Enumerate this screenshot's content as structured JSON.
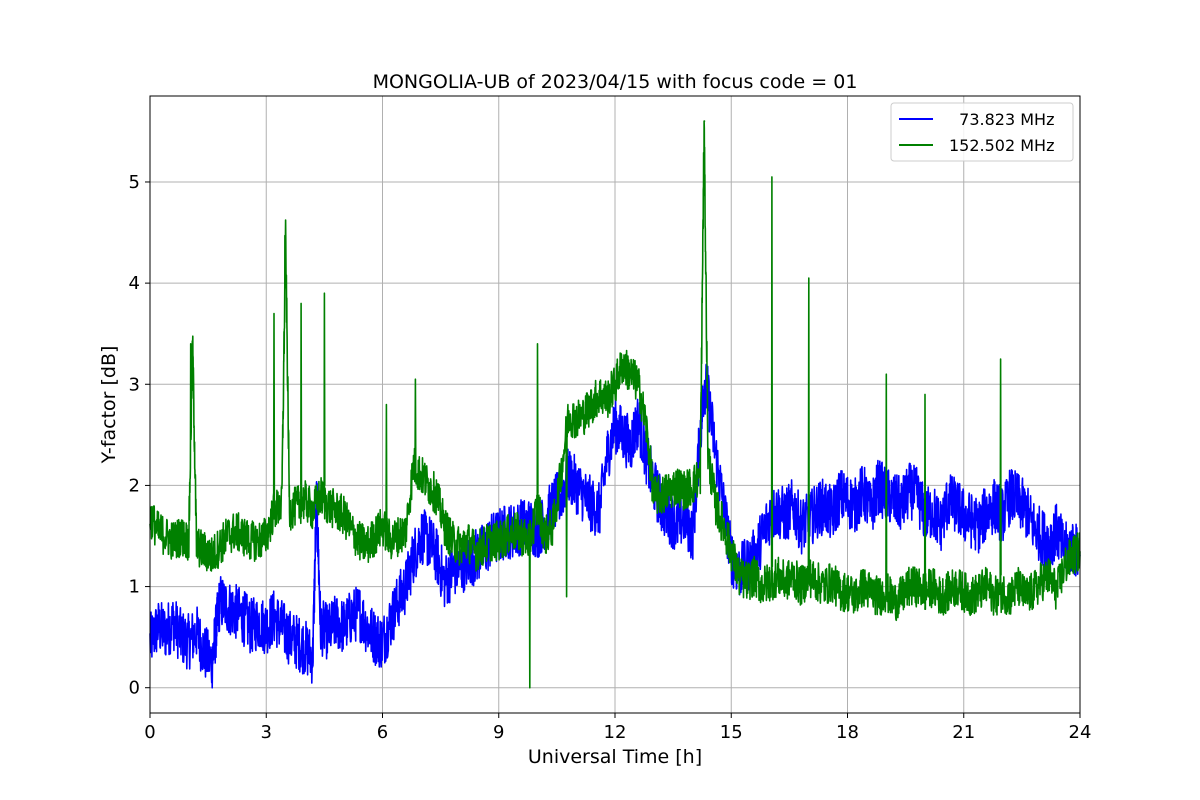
{
  "chart_data": {
    "type": "line",
    "title": "MONGOLIA-UB of 2023/04/15 with focus code = 01",
    "xlabel": "Universal Time [h]",
    "ylabel": "Y-factor [dB]",
    "xlim": [
      0,
      24
    ],
    "ylim": [
      -0.25,
      5.85
    ],
    "xticks": [
      0,
      3,
      6,
      9,
      12,
      15,
      18,
      21,
      24
    ],
    "yticks": [
      0,
      1,
      2,
      3,
      4,
      5
    ],
    "grid": true,
    "legend_position": "top-right",
    "series": [
      {
        "name": "  73.823 MHz",
        "color": "#0000ff",
        "x": [
          0,
          0.2,
          0.4,
          0.6,
          0.8,
          1.0,
          1.2,
          1.4,
          1.6,
          1.7,
          1.8,
          2.0,
          2.2,
          2.4,
          2.6,
          2.8,
          3.0,
          3.2,
          3.4,
          3.6,
          3.8,
          4.0,
          4.2,
          4.3,
          4.4,
          4.6,
          4.8,
          5.0,
          5.2,
          5.4,
          5.6,
          5.8,
          6.0,
          6.2,
          6.4,
          6.6,
          6.8,
          7.0,
          7.2,
          7.4,
          7.6,
          7.8,
          8.0,
          8.2,
          8.4,
          8.6,
          8.8,
          9.0,
          9.2,
          9.4,
          9.6,
          9.8,
          10.0,
          10.2,
          10.4,
          10.6,
          10.8,
          11.0,
          11.2,
          11.4,
          11.6,
          11.8,
          12.0,
          12.2,
          12.4,
          12.6,
          12.8,
          13.0,
          13.2,
          13.4,
          13.6,
          13.8,
          14.0,
          14.2,
          14.3,
          14.4,
          14.6,
          14.8,
          15.0,
          15.2,
          15.4,
          15.6,
          15.8,
          16.0,
          16.2,
          16.4,
          16.6,
          16.8,
          17.0,
          17.2,
          17.4,
          17.6,
          17.8,
          18.0,
          18.2,
          18.4,
          18.6,
          18.8,
          19.0,
          19.2,
          19.4,
          19.6,
          19.8,
          20.0,
          20.2,
          20.4,
          20.6,
          20.8,
          21.0,
          21.2,
          21.4,
          21.6,
          21.8,
          22.0,
          22.2,
          22.4,
          22.6,
          22.8,
          23.0,
          23.2,
          23.4,
          23.6,
          23.8,
          24.0
        ],
        "y": [
          0.45,
          0.6,
          0.55,
          0.65,
          0.5,
          0.45,
          0.55,
          0.35,
          0.25,
          0.55,
          0.85,
          0.8,
          0.75,
          0.7,
          0.6,
          0.65,
          0.6,
          0.7,
          0.6,
          0.5,
          0.45,
          0.4,
          0.3,
          1.9,
          0.6,
          0.55,
          0.65,
          0.6,
          0.7,
          0.75,
          0.6,
          0.5,
          0.45,
          0.65,
          0.85,
          1.0,
          1.3,
          1.5,
          1.45,
          1.3,
          1.05,
          1.15,
          1.2,
          1.25,
          1.3,
          1.35,
          1.45,
          1.5,
          1.55,
          1.55,
          1.6,
          1.6,
          1.55,
          1.65,
          1.8,
          1.9,
          2.1,
          2.0,
          1.9,
          1.8,
          1.75,
          2.3,
          2.6,
          2.5,
          2.4,
          2.65,
          2.3,
          2.0,
          1.8,
          1.7,
          1.6,
          1.7,
          1.5,
          2.5,
          3.0,
          2.9,
          2.3,
          1.8,
          1.3,
          1.15,
          1.2,
          1.3,
          1.5,
          1.7,
          1.75,
          1.7,
          1.8,
          1.6,
          1.65,
          1.75,
          1.8,
          1.7,
          1.9,
          1.85,
          1.8,
          1.95,
          1.75,
          2.0,
          1.9,
          1.85,
          1.8,
          1.95,
          1.9,
          1.7,
          1.75,
          1.6,
          1.85,
          1.8,
          1.7,
          1.65,
          1.6,
          1.75,
          1.8,
          1.7,
          1.9,
          1.85,
          1.75,
          1.6,
          1.5,
          1.45,
          1.55,
          1.35,
          1.4,
          1.3
        ]
      },
      {
        "name": "152.502 MHz",
        "color": "#008000",
        "x": [
          0,
          0.2,
          0.4,
          0.6,
          0.8,
          1.0,
          1.1,
          1.2,
          1.4,
          1.6,
          1.8,
          2.0,
          2.2,
          2.4,
          2.6,
          2.8,
          3.0,
          3.2,
          3.4,
          3.5,
          3.6,
          3.8,
          4.0,
          4.2,
          4.4,
          4.6,
          4.8,
          5.0,
          5.2,
          5.4,
          5.6,
          5.8,
          6.0,
          6.2,
          6.4,
          6.6,
          6.8,
          7.0,
          7.2,
          7.4,
          7.6,
          7.8,
          8.0,
          8.2,
          8.4,
          8.6,
          8.8,
          9.0,
          9.2,
          9.4,
          9.6,
          9.8,
          10.0,
          10.2,
          10.4,
          10.6,
          10.8,
          11.0,
          11.2,
          11.4,
          11.6,
          11.8,
          12.0,
          12.2,
          12.4,
          12.6,
          12.8,
          13.0,
          13.2,
          13.4,
          13.6,
          13.8,
          14.0,
          14.2,
          14.3,
          14.4,
          14.6,
          14.8,
          15.0,
          15.2,
          15.4,
          15.6,
          15.8,
          16.0,
          16.2,
          16.4,
          16.6,
          16.8,
          17.0,
          17.2,
          17.4,
          17.6,
          17.8,
          18.0,
          18.2,
          18.4,
          18.6,
          18.8,
          19.0,
          19.2,
          19.4,
          19.6,
          19.8,
          20.0,
          20.2,
          20.4,
          20.6,
          20.8,
          21.0,
          21.2,
          21.4,
          21.6,
          21.8,
          22.0,
          22.2,
          22.4,
          22.6,
          22.8,
          23.0,
          23.2,
          23.4,
          23.6,
          23.8,
          24.0
        ],
        "y": [
          1.7,
          1.55,
          1.5,
          1.45,
          1.5,
          1.45,
          3.4,
          1.4,
          1.35,
          1.3,
          1.4,
          1.5,
          1.55,
          1.5,
          1.45,
          1.45,
          1.5,
          1.75,
          1.8,
          4.45,
          1.75,
          1.8,
          1.85,
          1.75,
          1.9,
          1.8,
          1.75,
          1.7,
          1.55,
          1.45,
          1.4,
          1.5,
          1.6,
          1.45,
          1.5,
          1.55,
          2.2,
          2.1,
          2.0,
          1.9,
          1.6,
          1.45,
          1.4,
          1.45,
          1.35,
          1.4,
          1.45,
          1.45,
          1.5,
          1.55,
          1.5,
          1.45,
          1.8,
          1.5,
          1.6,
          2.1,
          2.7,
          2.65,
          2.7,
          2.8,
          2.9,
          2.85,
          3.0,
          3.2,
          3.1,
          3.0,
          2.6,
          1.9,
          1.9,
          1.95,
          2.0,
          1.95,
          2.0,
          2.1,
          5.55,
          2.3,
          1.8,
          1.6,
          1.35,
          1.1,
          1.05,
          1.1,
          1.0,
          1.05,
          1.1,
          1.05,
          1.1,
          1.0,
          1.1,
          1.05,
          1.0,
          1.05,
          0.95,
          0.95,
          0.9,
          1.0,
          0.95,
          0.9,
          0.95,
          0.85,
          0.9,
          1.0,
          1.0,
          0.95,
          1.0,
          0.9,
          0.95,
          1.0,
          0.95,
          0.9,
          0.95,
          1.0,
          0.9,
          0.95,
          0.9,
          1.0,
          0.9,
          0.95,
          1.05,
          1.1,
          0.95,
          1.2,
          1.3,
          1.35
        ]
      }
    ],
    "annotations_spikes_152": [
      {
        "x": 1.05,
        "y": 3.4
      },
      {
        "x": 3.2,
        "y": 3.7
      },
      {
        "x": 3.48,
        "y": 4.47
      },
      {
        "x": 3.9,
        "y": 3.8
      },
      {
        "x": 4.5,
        "y": 3.9
      },
      {
        "x": 6.1,
        "y": 2.8
      },
      {
        "x": 6.85,
        "y": 3.05
      },
      {
        "x": 9.8,
        "y": 0.0
      },
      {
        "x": 10.0,
        "y": 3.4
      },
      {
        "x": 10.75,
        "y": 0.9
      },
      {
        "x": 14.3,
        "y": 5.6
      },
      {
        "x": 16.05,
        "y": 5.05
      },
      {
        "x": 17.0,
        "y": 4.05
      },
      {
        "x": 19.0,
        "y": 3.1
      },
      {
        "x": 20.0,
        "y": 2.9
      },
      {
        "x": 21.95,
        "y": 3.25
      }
    ]
  }
}
